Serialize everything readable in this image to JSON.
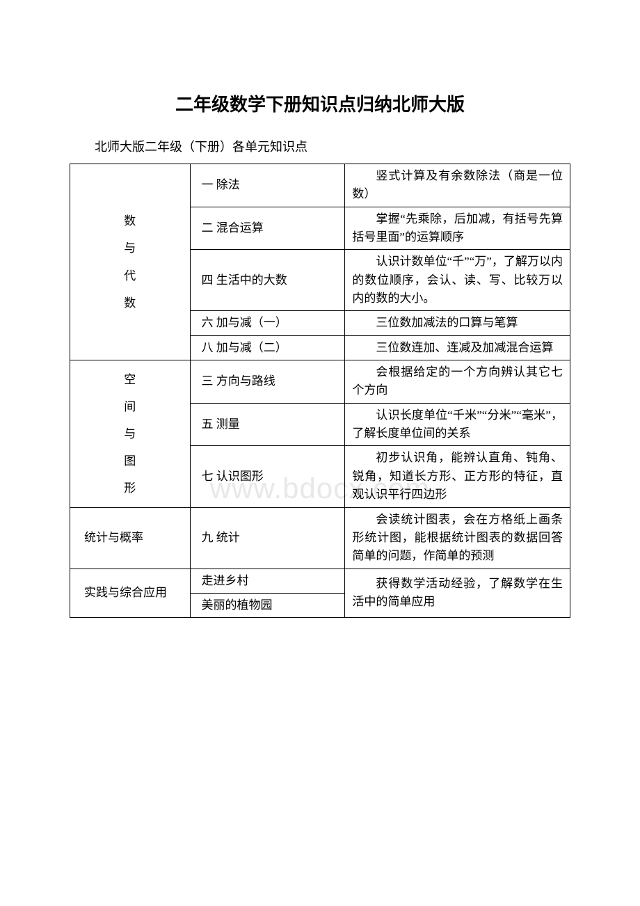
{
  "title": "二年级数学下册知识点归纳北师大版",
  "subtitle": "北师大版二年级（下册）各单元知识点",
  "watermark": "www.bdocx.com",
  "categories": [
    {
      "name_lines": [
        "数",
        "与",
        "代",
        "数"
      ],
      "rows": [
        {
          "unit": "一 除法",
          "desc": "竖式计算及有余数除法（商是一位数）"
        },
        {
          "unit": "二 混合运算",
          "desc": "掌握“先乘除，后加减，有括号先算括号里面”的运算顺序"
        },
        {
          "unit": "四 生活中的大数",
          "desc": "认识计数单位“千”“万”，了解万以内的数位顺序，会认、读、写、比较万以内的数的大小。"
        },
        {
          "unit": "六 加与减（一）",
          "desc": "三位数加减法的口算与笔算"
        },
        {
          "unit": "八 加与减（二）",
          "desc": "三位数连加、连减及加减混合运算"
        }
      ]
    },
    {
      "name_lines": [
        "空",
        "间",
        "与",
        "图",
        "形"
      ],
      "rows": [
        {
          "unit": "三 方向与路线",
          "desc": "会根据给定的一个方向辨认其它七个方向"
        },
        {
          "unit": "五 测量",
          "desc": "认识长度单位“千米”“分米”“毫米”，了解长度单位间的关系"
        },
        {
          "unit": "七 认识图形",
          "desc": "初步认识角，能辨认直角、钝角、锐角，知道长方形、正方形的特征，直观认识平行四边形"
        }
      ]
    },
    {
      "name_plain": "统计与概率",
      "rows": [
        {
          "unit": "九 统计",
          "desc": "会读统计图表，会在方格纸上画条形统计图，能根据统计图表的数据回答简单的问题，作简单的预测"
        }
      ]
    },
    {
      "name_plain": "实践与综合应用",
      "rows": [
        {
          "unit": "走进乡村"
        },
        {
          "unit": "美丽的植物园"
        }
      ],
      "shared_desc": "获得数学活动经验，了解数学在生活中的简单应用"
    }
  ]
}
